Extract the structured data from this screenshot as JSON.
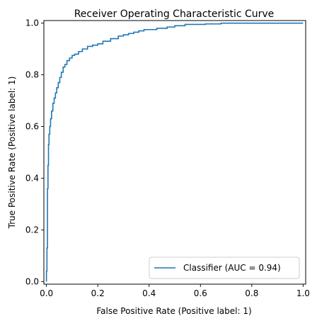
{
  "chart_data": {
    "type": "line",
    "title": "Receiver Operating Characteristic Curve",
    "xlabel": "False Positive Rate (Positive label: 1)",
    "ylabel": "True Positive Rate (Positive label: 1)",
    "xlim": [
      -0.01,
      1.01
    ],
    "ylim": [
      -0.01,
      1.01
    ],
    "xticks": [
      0.0,
      0.2,
      0.4,
      0.6,
      0.8,
      1.0
    ],
    "yticks": [
      0.0,
      0.2,
      0.4,
      0.6,
      0.8,
      1.0
    ],
    "xtick_labels": [
      "0.0",
      "0.2",
      "0.4",
      "0.6",
      "0.8",
      "1.0"
    ],
    "ytick_labels": [
      "0.0",
      "0.2",
      "0.4",
      "0.6",
      "0.8",
      "1.0"
    ],
    "grid": false,
    "legend_position": "lower-right",
    "series": [
      {
        "name": "Classifier (AUC = 0.94)",
        "color": "#1f77b4",
        "x": [
          0.0,
          0.0,
          0.002,
          0.002,
          0.004,
          0.004,
          0.006,
          0.006,
          0.008,
          0.008,
          0.01,
          0.01,
          0.013,
          0.013,
          0.016,
          0.016,
          0.02,
          0.02,
          0.025,
          0.025,
          0.03,
          0.03,
          0.035,
          0.035,
          0.04,
          0.04,
          0.046,
          0.046,
          0.052,
          0.052,
          0.058,
          0.058,
          0.065,
          0.065,
          0.072,
          0.072,
          0.08,
          0.08,
          0.09,
          0.09,
          0.1,
          0.1,
          0.11,
          0.11,
          0.125,
          0.125,
          0.14,
          0.14,
          0.16,
          0.16,
          0.18,
          0.18,
          0.2,
          0.2,
          0.22,
          0.22,
          0.25,
          0.25,
          0.28,
          0.28,
          0.3,
          0.3,
          0.32,
          0.32,
          0.34,
          0.34,
          0.36,
          0.36,
          0.38,
          0.38,
          0.43,
          0.43,
          0.47,
          0.47,
          0.5,
          0.5,
          0.54,
          0.54,
          0.62,
          0.62,
          0.68,
          0.68,
          1.0
        ],
        "y": [
          0.0,
          0.04,
          0.04,
          0.13,
          0.13,
          0.36,
          0.36,
          0.45,
          0.45,
          0.53,
          0.53,
          0.57,
          0.57,
          0.6,
          0.6,
          0.63,
          0.63,
          0.66,
          0.66,
          0.69,
          0.69,
          0.71,
          0.71,
          0.73,
          0.73,
          0.75,
          0.75,
          0.77,
          0.77,
          0.79,
          0.79,
          0.81,
          0.81,
          0.83,
          0.83,
          0.84,
          0.84,
          0.855,
          0.855,
          0.865,
          0.865,
          0.875,
          0.875,
          0.88,
          0.88,
          0.89,
          0.89,
          0.9,
          0.9,
          0.91,
          0.91,
          0.915,
          0.915,
          0.92,
          0.92,
          0.93,
          0.93,
          0.94,
          0.94,
          0.95,
          0.95,
          0.955,
          0.955,
          0.96,
          0.96,
          0.965,
          0.965,
          0.97,
          0.97,
          0.975,
          0.975,
          0.98,
          0.98,
          0.985,
          0.985,
          0.99,
          0.99,
          0.995,
          0.995,
          0.997,
          0.997,
          1.0,
          1.0
        ]
      }
    ]
  }
}
